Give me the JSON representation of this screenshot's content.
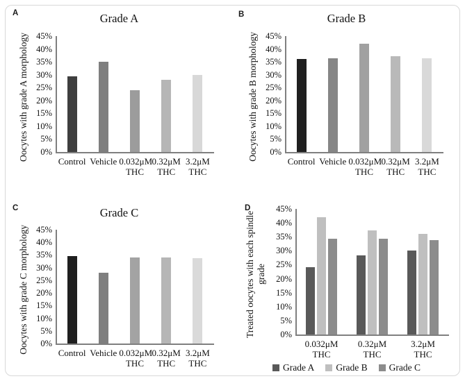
{
  "figure": {
    "background": "#ffffff",
    "border_color": "#d8d8d8",
    "axis_color": "#7f7f7f"
  },
  "chart_data": [
    {
      "type": "bar",
      "panel": "A",
      "title": "Grade A",
      "xlabel": "",
      "ylabel": "Oocytes with grade A morphology",
      "categories": [
        "Control",
        "Vehicle",
        "0.032μM\nTHC",
        "0.32μM\nTHC",
        "3.2μM\nTHC"
      ],
      "values": [
        29.5,
        35,
        24,
        28,
        29.8
      ],
      "bar_colors": [
        "#3f3f3f",
        "#7f7f7f",
        "#9c9c9c",
        "#b6b6b6",
        "#d8d8d8"
      ],
      "ylim": [
        0,
        45
      ],
      "ytick_step": 5,
      "ytick_suffix": "%",
      "grid": false
    },
    {
      "type": "bar",
      "panel": "B",
      "title": "Grade B",
      "xlabel": "",
      "ylabel": "Oocytes with grade B morphology",
      "categories": [
        "Control",
        "Vehicle",
        "0.032μM\nTHC",
        "0.32μM\nTHC",
        "3.2μM\nTHC"
      ],
      "values": [
        36,
        36.3,
        42,
        37.3,
        36.3
      ],
      "bar_colors": [
        "#1f1f1f",
        "#868686",
        "#a1a1a1",
        "#b9b9b9",
        "#d9d9d9"
      ],
      "ylim": [
        0,
        45
      ],
      "ytick_step": 5,
      "ytick_suffix": "%",
      "grid": false
    },
    {
      "type": "bar",
      "panel": "C",
      "title": "Grade C",
      "xlabel": "",
      "ylabel": "Oocytes with grade C morphology",
      "categories": [
        "Control",
        "Vehicle",
        "0.032μM\nTHC",
        "0.32μM\nTHC",
        "3.2μM\nTHC"
      ],
      "values": [
        34.5,
        28,
        34,
        34,
        33.7
      ],
      "bar_colors": [
        "#1f1f1f",
        "#7f7f7f",
        "#a3a3a3",
        "#b6b6b6",
        "#dadada"
      ],
      "ylim": [
        0,
        45
      ],
      "ytick_step": 5,
      "ytick_suffix": "%",
      "grid": false
    },
    {
      "type": "bar",
      "panel": "D",
      "title": "",
      "xlabel": "",
      "ylabel": "Treated oocytes with each spindle grade",
      "categories": [
        "0.032μM\nTHC",
        "0.32μM\nTHC",
        "3.2μM\nTHC"
      ],
      "series": [
        {
          "name": "Grade A",
          "color": "#595959",
          "values": [
            24,
            28.4,
            30.2
          ]
        },
        {
          "name": "Grade B",
          "color": "#bfbfbf",
          "values": [
            42,
            37.2,
            36
          ]
        },
        {
          "name": "Grade C",
          "color": "#8c8c8c",
          "values": [
            34.2,
            34.2,
            33.8
          ]
        }
      ],
      "legend": [
        "Grade A",
        "Grade B",
        "Grade C"
      ],
      "legend_position": "bottom",
      "ylim": [
        0,
        45
      ],
      "ytick_step": 5,
      "ytick_suffix": "%",
      "grid": false
    }
  ]
}
